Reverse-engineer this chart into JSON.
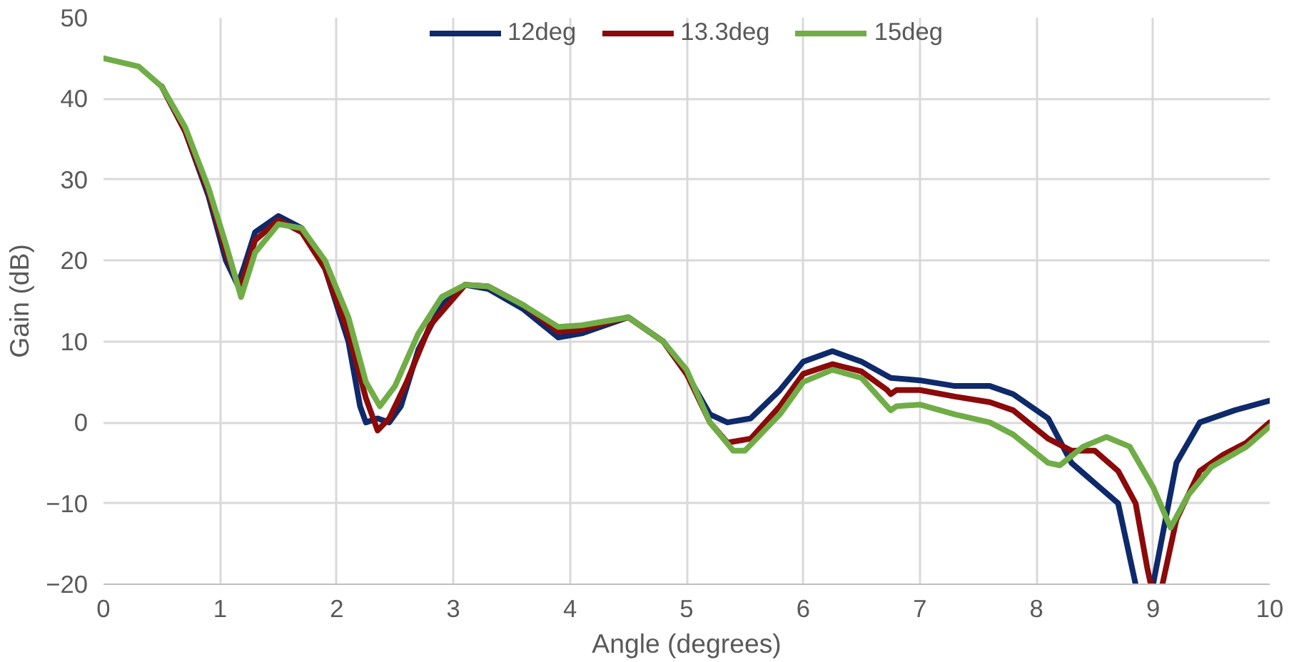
{
  "chart_data": {
    "type": "line",
    "xlabel": "Angle (degrees)",
    "ylabel": "Gain (dB)",
    "xlim": [
      0,
      10
    ],
    "ylim": [
      -20,
      50
    ],
    "xticks": [
      0,
      1,
      2,
      3,
      4,
      5,
      6,
      7,
      8,
      9,
      10
    ],
    "yticks": [
      -20,
      -10,
      0,
      10,
      20,
      30,
      40,
      50
    ],
    "grid": true,
    "legend": "top",
    "line_style": "solid",
    "marker": "none",
    "series": [
      {
        "name": "12deg",
        "color": "#0e2a6b",
        "x": [
          0.5,
          0.7,
          0.9,
          1.05,
          1.15,
          1.2,
          1.3,
          1.5,
          1.7,
          1.9,
          2.1,
          2.2,
          2.25,
          2.35,
          2.45,
          2.55,
          2.7,
          2.9,
          3.1,
          3.3,
          3.6,
          3.9,
          4.1,
          4.5,
          4.8,
          5.0,
          5.2,
          5.35,
          5.55,
          5.8,
          6.0,
          6.25,
          6.5,
          6.75,
          7.0,
          7.3,
          7.6,
          7.8,
          8.1,
          8.3,
          8.5,
          8.7,
          8.85,
          8.9,
          9.0,
          9.2,
          9.4,
          9.7,
          10
        ],
        "values": [
          41.5,
          36,
          28,
          20,
          17,
          19,
          23.5,
          25.5,
          24,
          19,
          10,
          2,
          0,
          0.5,
          0,
          2,
          9,
          14.5,
          17,
          16.5,
          14,
          10.5,
          11,
          13,
          10,
          6,
          1,
          0,
          0.5,
          4,
          7.5,
          8.8,
          7.5,
          5.5,
          5.2,
          4.5,
          4.5,
          3.5,
          0.5,
          -5,
          -7.5,
          -10,
          -20,
          null,
          -20,
          -5,
          0,
          1.5,
          2.7
        ]
      },
      {
        "name": "13.3deg",
        "color": "#8b0a0a",
        "x": [
          0.5,
          0.7,
          0.9,
          1.05,
          1.17,
          1.3,
          1.5,
          1.7,
          1.9,
          2.1,
          2.25,
          2.35,
          2.45,
          2.6,
          2.8,
          3.1,
          3.3,
          3.6,
          3.9,
          4.1,
          4.5,
          4.8,
          5.0,
          5.2,
          5.35,
          5.55,
          5.8,
          6.0,
          6.25,
          6.5,
          6.72,
          6.75,
          6.8,
          7.0,
          7.3,
          7.6,
          7.8,
          8.1,
          8.3,
          8.5,
          8.7,
          8.85,
          8.95,
          8.98,
          9.03,
          9.08,
          9.2,
          9.4,
          9.6,
          9.8,
          10
        ],
        "values": [
          41.5,
          36,
          28.5,
          21,
          16.5,
          22.5,
          25,
          23.5,
          19,
          11,
          3,
          -1,
          0.5,
          5,
          12,
          17,
          16.8,
          14.5,
          11.2,
          11.5,
          13,
          10,
          6,
          0,
          -2.5,
          -2,
          2,
          6,
          7.2,
          6.3,
          4,
          3.5,
          4,
          4,
          3.2,
          2.5,
          1.5,
          -2,
          -3.5,
          -3.5,
          -6,
          -10,
          -18,
          -20,
          null,
          -20,
          -12,
          -6,
          -4,
          -2.5,
          0
        ]
      },
      {
        "name": "15deg",
        "color": "#70ad47",
        "x": [
          0,
          0.3,
          0.5,
          0.7,
          0.9,
          1.05,
          1.18,
          1.3,
          1.5,
          1.7,
          1.9,
          2.1,
          2.25,
          2.37,
          2.5,
          2.7,
          2.9,
          3.1,
          3.3,
          3.6,
          3.9,
          4.1,
          4.5,
          4.8,
          5.0,
          5.2,
          5.4,
          5.5,
          5.8,
          6.0,
          6.25,
          6.5,
          6.75,
          6.8,
          7.0,
          7.3,
          7.6,
          7.8,
          8.1,
          8.2,
          8.4,
          8.6,
          8.8,
          9.0,
          9.15,
          9.3,
          9.5,
          9.8,
          10
        ],
        "values": [
          45,
          44,
          41.5,
          36.5,
          29,
          22,
          15.5,
          21,
          24.5,
          24,
          20,
          13,
          5,
          2,
          4.5,
          11,
          15.5,
          17,
          16.8,
          14.5,
          11.8,
          12,
          13,
          10,
          6.5,
          0,
          -3.5,
          -3.5,
          1,
          5,
          6.5,
          5.5,
          1.5,
          2,
          2.2,
          1,
          0,
          -1.5,
          -5,
          -5.3,
          -3,
          -1.8,
          -3,
          -8,
          -13,
          -9,
          -5.5,
          -3,
          -0.5
        ]
      }
    ]
  }
}
